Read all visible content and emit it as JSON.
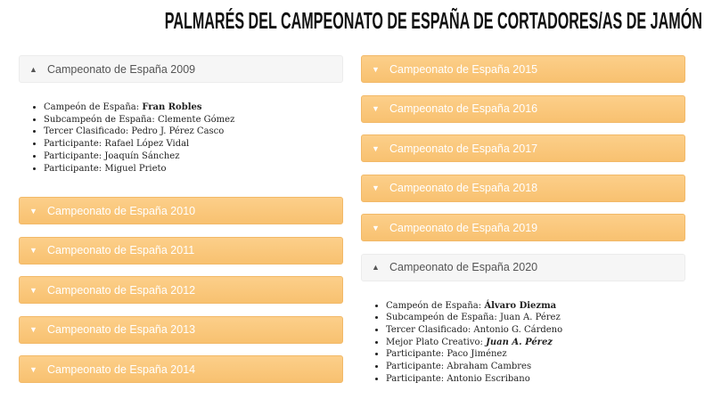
{
  "title": "PALMARÉS DEL CAMPEONATO DE ESPAÑA DE CORTADORES/AS DE JAMÓN",
  "columns": [
    {
      "sections": [
        {
          "heading": "Campeonato de España 2009",
          "expanded": true,
          "items": [
            {
              "label": "Campeón de España:",
              "name": "Fran Robles",
              "style": "bold"
            },
            {
              "label": "Subcampeón de España:",
              "name": "Clemente Gómez"
            },
            {
              "label": "Tercer Clasificado:",
              "name": "Pedro J. Pérez Casco"
            },
            {
              "label": "Participante:",
              "name": "Rafael López Vidal"
            },
            {
              "label": "Participante:",
              "name": "Joaquín Sánchez"
            },
            {
              "label": "Participante:",
              "name": "Miguel Prieto"
            }
          ]
        },
        {
          "heading": "Campeonato de España 2010",
          "expanded": false
        },
        {
          "heading": "Campeonato de España 2011",
          "expanded": false
        },
        {
          "heading": "Campeonato de España 2012",
          "expanded": false
        },
        {
          "heading": "Campeonato de España 2013",
          "expanded": false
        },
        {
          "heading": "Campeonato de España 2014",
          "expanded": false
        }
      ]
    },
    {
      "sections": [
        {
          "heading": "Campeonato de España 2015",
          "expanded": false
        },
        {
          "heading": "Campeonato de España 2016",
          "expanded": false
        },
        {
          "heading": "Campeonato de España 2017",
          "expanded": false
        },
        {
          "heading": "Campeonato de España 2018",
          "expanded": false
        },
        {
          "heading": "Campeonato de España 2019",
          "expanded": false
        },
        {
          "heading": "Campeonato de España 2020",
          "expanded": true,
          "items": [
            {
              "label": "Campeón de España:",
              "name": "Álvaro Diezma",
              "style": "bold"
            },
            {
              "label": "Subcampeón de España:",
              "name": "Juan A. Pérez"
            },
            {
              "label": "Tercer Clasificado:",
              "name": "Antonio G. Cárdeno"
            },
            {
              "label": "Mejor Plato Creativo:",
              "name": "Juan A. Pérez",
              "style": "bold-italic"
            },
            {
              "label": "Participante:",
              "name": "Paco Jiménez"
            },
            {
              "label": "Participante:",
              "name": "Abraham Cambres"
            },
            {
              "label": "Participante:",
              "name": "Antonio Escribano"
            }
          ]
        }
      ]
    }
  ]
}
